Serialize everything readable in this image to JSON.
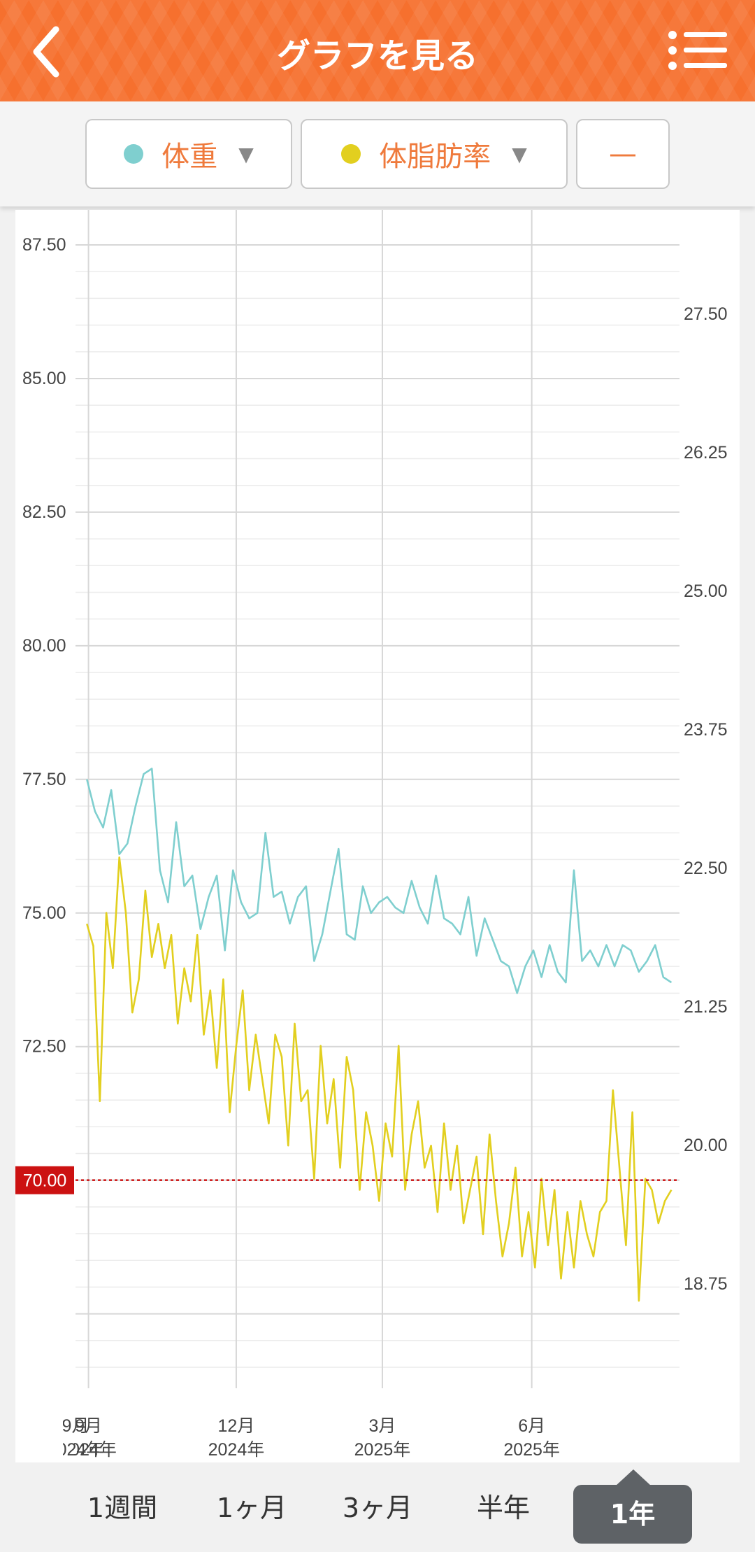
{
  "header": {
    "title": "グラフを見る",
    "back_icon": "chevron-left-icon",
    "menu_icon": "list-menu-icon"
  },
  "selectors": {
    "metric1": {
      "label": "体重",
      "color": "#7fcfcf",
      "arrow": "▼"
    },
    "metric2": {
      "label": "体脂肪率",
      "color": "#e2cf1f",
      "arrow": "▼"
    },
    "metric3": {
      "label": "—"
    }
  },
  "tabs": {
    "week": "1週間",
    "month": "1ヶ月",
    "quarter": "3ヶ月",
    "half": "半年",
    "year": "1年"
  },
  "chart_data": {
    "type": "line",
    "grid": true,
    "left_axis": {
      "ticks": [
        "87.50",
        "85.00",
        "82.50",
        "80.00",
        "77.50",
        "75.00",
        "72.50"
      ],
      "ylim": [
        66.5,
        87.5
      ]
    },
    "right_axis": {
      "ticks": [
        "27.50",
        "26.25",
        "25.00",
        "23.75",
        "22.50",
        "21.25",
        "20.00",
        "18.75"
      ],
      "ylim": [
        18.0,
        28.125
      ]
    },
    "x_ticks": [
      {
        "month": "9月",
        "year": "2024年"
      },
      {
        "month": "12月",
        "year": "2024年"
      },
      {
        "month": "3月",
        "year": "2025年"
      },
      {
        "month": "6月",
        "year": "2025年"
      }
    ],
    "target_line": {
      "value": 70.0,
      "label": "70.00",
      "color": "#cc1111"
    },
    "series": [
      {
        "name": "体重",
        "axis": "left",
        "color": "#7fcfcf",
        "x": [
          "2024-08-31",
          "2024-09-05",
          "2024-09-10",
          "2024-09-15",
          "2024-09-20",
          "2024-09-25",
          "2024-09-30",
          "2024-10-05",
          "2024-10-10",
          "2024-10-15",
          "2024-10-20",
          "2024-10-25",
          "2024-10-30",
          "2024-11-04",
          "2024-11-09",
          "2024-11-14",
          "2024-11-19",
          "2024-11-24",
          "2024-11-29",
          "2024-12-04",
          "2024-12-09",
          "2024-12-14",
          "2024-12-19",
          "2024-12-24",
          "2024-12-29",
          "2025-01-03",
          "2025-01-08",
          "2025-01-13",
          "2025-01-18",
          "2025-01-23",
          "2025-01-28",
          "2025-02-02",
          "2025-02-07",
          "2025-02-12",
          "2025-02-17",
          "2025-02-22",
          "2025-02-27",
          "2025-03-04",
          "2025-03-09",
          "2025-03-14",
          "2025-03-19",
          "2025-03-24",
          "2025-03-29",
          "2025-04-03",
          "2025-04-08",
          "2025-04-13",
          "2025-04-18",
          "2025-04-23",
          "2025-04-28",
          "2025-05-03",
          "2025-05-08",
          "2025-05-13",
          "2025-05-18",
          "2025-05-23",
          "2025-05-28",
          "2025-06-02",
          "2025-06-07",
          "2025-06-12",
          "2025-06-17",
          "2025-06-22",
          "2025-06-27",
          "2025-07-02",
          "2025-07-07",
          "2025-07-12",
          "2025-07-17",
          "2025-07-22",
          "2025-07-27",
          "2025-08-01",
          "2025-08-06",
          "2025-08-11",
          "2025-08-16",
          "2025-08-21",
          "2025-08-26"
        ],
        "values": [
          77.5,
          76.9,
          76.6,
          77.3,
          76.1,
          76.3,
          77.0,
          77.6,
          77.7,
          75.8,
          75.2,
          76.7,
          75.5,
          75.7,
          74.7,
          75.3,
          75.7,
          74.3,
          75.8,
          75.2,
          74.9,
          75.0,
          76.5,
          75.3,
          75.4,
          74.8,
          75.3,
          75.5,
          74.1,
          74.6,
          75.4,
          76.2,
          74.6,
          74.5,
          75.5,
          75.0,
          75.2,
          75.3,
          75.1,
          75.0,
          75.6,
          75.1,
          74.8,
          75.7,
          74.9,
          74.8,
          74.6,
          75.3,
          74.2,
          74.9,
          74.5,
          74.1,
          74.0,
          73.5,
          74.0,
          74.3,
          73.8,
          74.4,
          73.9,
          73.7,
          75.8,
          74.1,
          74.3,
          74.0,
          74.4,
          74.0,
          74.4,
          74.3,
          73.9,
          74.1,
          74.4,
          73.8,
          73.7
        ]
      },
      {
        "name": "体脂肪率",
        "axis": "right",
        "color": "#e2cf1f",
        "x": [
          "2024-08-31",
          "2024-09-04",
          "2024-09-08",
          "2024-09-12",
          "2024-09-16",
          "2024-09-20",
          "2024-09-24",
          "2024-09-28",
          "2024-10-02",
          "2024-10-06",
          "2024-10-10",
          "2024-10-14",
          "2024-10-18",
          "2024-10-22",
          "2024-10-26",
          "2024-10-30",
          "2024-11-03",
          "2024-11-07",
          "2024-11-11",
          "2024-11-15",
          "2024-11-19",
          "2024-11-23",
          "2024-11-27",
          "2024-12-01",
          "2024-12-05",
          "2024-12-09",
          "2024-12-13",
          "2024-12-17",
          "2024-12-21",
          "2024-12-25",
          "2024-12-29",
          "2025-01-02",
          "2025-01-06",
          "2025-01-10",
          "2025-01-14",
          "2025-01-18",
          "2025-01-22",
          "2025-01-26",
          "2025-01-30",
          "2025-02-03",
          "2025-02-07",
          "2025-02-11",
          "2025-02-15",
          "2025-02-19",
          "2025-02-23",
          "2025-02-27",
          "2025-03-03",
          "2025-03-07",
          "2025-03-11",
          "2025-03-15",
          "2025-03-19",
          "2025-03-23",
          "2025-03-27",
          "2025-03-31",
          "2025-04-04",
          "2025-04-08",
          "2025-04-12",
          "2025-04-16",
          "2025-04-20",
          "2025-04-24",
          "2025-04-28",
          "2025-05-02",
          "2025-05-06",
          "2025-05-10",
          "2025-05-14",
          "2025-05-18",
          "2025-05-22",
          "2025-05-26",
          "2025-05-30",
          "2025-06-03",
          "2025-06-07",
          "2025-06-11",
          "2025-06-15",
          "2025-06-19",
          "2025-06-23",
          "2025-06-27",
          "2025-07-01",
          "2025-07-05",
          "2025-07-09",
          "2025-07-13",
          "2025-07-17",
          "2025-07-21",
          "2025-07-25",
          "2025-07-29",
          "2025-08-02",
          "2025-08-06",
          "2025-08-10",
          "2025-08-14",
          "2025-08-18",
          "2025-08-22",
          "2025-08-26"
        ],
        "values": [
          22.0,
          21.8,
          20.4,
          22.1,
          21.6,
          22.6,
          22.1,
          21.2,
          21.5,
          22.3,
          21.7,
          22.0,
          21.6,
          21.9,
          21.1,
          21.6,
          21.3,
          21.9,
          21.0,
          21.4,
          20.7,
          21.5,
          20.3,
          20.9,
          21.4,
          20.5,
          21.0,
          20.6,
          20.2,
          21.0,
          20.8,
          20.0,
          21.1,
          20.4,
          20.5,
          19.7,
          20.9,
          20.2,
          20.6,
          19.8,
          20.8,
          20.5,
          19.6,
          20.3,
          20.0,
          19.5,
          20.2,
          19.9,
          20.9,
          19.6,
          20.1,
          20.4,
          19.8,
          20.0,
          19.4,
          20.2,
          19.6,
          20.0,
          19.3,
          19.6,
          19.9,
          19.2,
          20.1,
          19.5,
          19.0,
          19.3,
          19.8,
          19.0,
          19.4,
          18.9,
          19.7,
          19.1,
          19.6,
          18.8,
          19.4,
          18.9,
          19.5,
          19.2,
          19.0,
          19.4,
          19.5,
          20.5,
          19.8,
          19.1,
          20.3,
          18.6,
          19.7,
          19.6,
          19.3,
          19.5,
          19.6
        ]
      }
    ]
  }
}
